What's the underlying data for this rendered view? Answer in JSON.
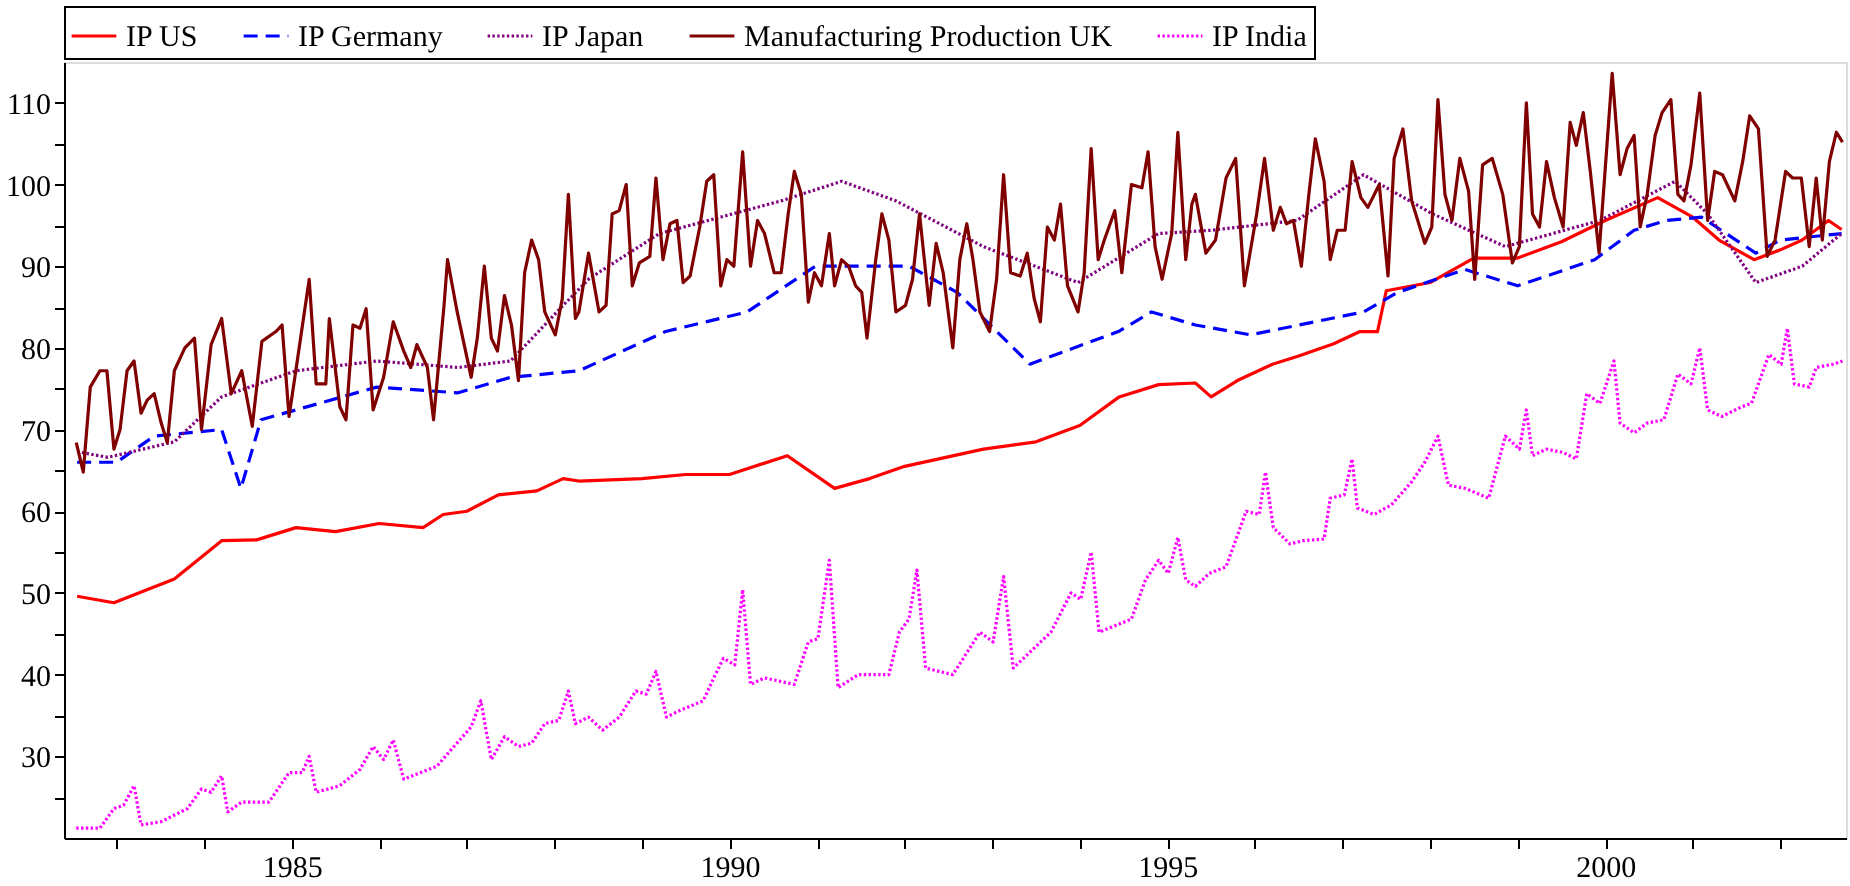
{
  "chart_data": {
    "type": "line",
    "legend": "top",
    "grid": false,
    "xlim": [
      1982.4,
      2002.75
    ],
    "xticks": [
      {
        "value": 1983,
        "label": null
      },
      {
        "value": 1984,
        "label": null
      },
      1985,
      {
        "value": 1986,
        "label": null
      },
      {
        "value": 1987,
        "label": null
      },
      {
        "value": 1988,
        "label": null
      },
      {
        "value": 1989,
        "label": null
      },
      1990,
      {
        "value": 1991,
        "label": null
      },
      {
        "value": 1992,
        "label": null
      },
      {
        "value": 1993,
        "label": null
      },
      {
        "value": 1994,
        "label": null
      },
      1995,
      {
        "value": 1996,
        "label": null
      },
      {
        "value": 1997,
        "label": null
      },
      {
        "value": 1998,
        "label": null
      },
      {
        "value": 1999,
        "label": null
      },
      2000,
      {
        "value": 2001,
        "label": null
      },
      {
        "value": 2002,
        "label": null
      }
    ],
    "ylim": [
      20,
      115
    ],
    "yticks": [
      {
        "value": 25,
        "label": null
      },
      30,
      {
        "value": 35,
        "label": null
      },
      40,
      {
        "value": 45,
        "label": null
      },
      50,
      {
        "value": 55,
        "label": null
      },
      60,
      {
        "value": 65,
        "label": null
      },
      70,
      {
        "value": 75,
        "label": null
      },
      80,
      {
        "value": 85,
        "label": null
      },
      90,
      {
        "value": 95,
        "label": null
      },
      100,
      {
        "value": 105,
        "label": null
      },
      110
    ],
    "series": [
      {
        "name": "IP US",
        "color": "#ff0000",
        "line_style": "solid",
        "x": [
          1982.55,
          1982.97,
          1983.66,
          1984.2,
          1984.6,
          1985.05,
          1985.5,
          1986.0,
          1986.5,
          1986.73,
          1987.0,
          1987.36,
          1987.8,
          1988.1,
          1988.28,
          1989.0,
          1989.5,
          1990.0,
          1990.66,
          1991.2,
          1991.6,
          1992.0,
          1992.9,
          1993.5,
          1994.0,
          1994.45,
          1994.9,
          1995.32,
          1995.5,
          1995.8,
          1996.2,
          1996.5,
          1996.9,
          1997.2,
          1997.4,
          1997.5,
          1998.0,
          1998.5,
          1999.0,
          1999.5,
          2000.0,
          2000.6,
          2001.0,
          2001.3,
          2001.7,
          2002.0,
          2002.25,
          2002.55,
          2002.7
        ],
        "values": [
          49.6,
          48.8,
          51.7,
          56.4,
          56.5,
          58.0,
          57.5,
          58.5,
          58.0,
          59.6,
          60.0,
          62.0,
          62.5,
          64.0,
          63.7,
          64.0,
          64.5,
          64.5,
          66.8,
          62.8,
          64.0,
          65.5,
          67.6,
          68.5,
          70.5,
          74.0,
          75.5,
          75.7,
          74.0,
          76.0,
          78.0,
          79.0,
          80.5,
          82.0,
          82.0,
          87.0,
          88.0,
          91.0,
          91.0,
          93.0,
          95.6,
          98.4,
          96.0,
          93.2,
          90.8,
          92.0,
          93.2,
          95.6,
          94.5
        ]
      },
      {
        "name": "IP Germany",
        "color": "#0000ff",
        "line_style": "dashed",
        "x": [
          1982.55,
          1983.0,
          1983.43,
          1984.2,
          1984.42,
          1984.65,
          1985.97,
          1986.9,
          1987.5,
          1988.28,
          1989.27,
          1990.2,
          1990.98,
          1992.05,
          1992.6,
          1993.43,
          1994.44,
          1994.82,
          1995.32,
          1995.95,
          1997.24,
          1997.63,
          1998.4,
          1999.0,
          1999.88,
          2000.33,
          2000.7,
          2001.1,
          2001.72,
          2002.0,
          2002.7
        ],
        "values": [
          66.0,
          66.0,
          69.2,
          70.0,
          62.8,
          71.2,
          75.2,
          74.5,
          76.4,
          77.2,
          82.0,
          84.4,
          90.0,
          90.0,
          86.8,
          78.0,
          82.0,
          84.4,
          82.8,
          81.6,
          84.4,
          86.8,
          89.6,
          87.6,
          90.8,
          94.4,
          95.6,
          96.0,
          91.6,
          93.2,
          94.0
        ]
      },
      {
        "name": "IP Japan",
        "color": "#800080",
        "line_style": "dotted",
        "x": [
          1982.55,
          1982.9,
          1983.66,
          1984.2,
          1985.05,
          1985.97,
          1986.9,
          1987.5,
          1988.1,
          1988.4,
          1989.2,
          1990.59,
          1991.28,
          1991.9,
          1992.9,
          1993.98,
          1994.9,
          1995.5,
          1996.48,
          1997.24,
          1998.03,
          1998.86,
          1999.94,
          2000.8,
          2001.17,
          2001.72,
          2002.25,
          2002.7
        ],
        "values": [
          67.3,
          66.6,
          68.5,
          74.0,
          77.2,
          78.4,
          77.6,
          78.4,
          85.2,
          88.5,
          94.0,
          98.0,
          100.4,
          98.0,
          92.4,
          88.0,
          94.0,
          94.4,
          95.6,
          101.2,
          96.4,
          92.4,
          95.6,
          100.4,
          96.4,
          88.0,
          90.0,
          94.0
        ]
      },
      {
        "name": "Manufacturing Production UK",
        "color": "#800000",
        "line_style": "solid",
        "x": [
          1982.54,
          1982.62,
          1982.7,
          1982.81,
          1982.89,
          1982.97,
          1983.04,
          1983.12,
          1983.2,
          1983.28,
          1983.35,
          1983.43,
          1983.51,
          1983.58,
          1983.66,
          1983.78,
          1983.89,
          1983.97,
          1984.08,
          1984.2,
          1984.31,
          1984.43,
          1984.55,
          1984.66,
          1984.82,
          1984.89,
          1984.97,
          1985.08,
          1985.2,
          1985.28,
          1985.39,
          1985.43,
          1985.55,
          1985.62,
          1985.7,
          1985.78,
          1985.85,
          1985.93,
          1986.05,
          1986.16,
          1986.28,
          1986.36,
          1986.43,
          1986.55,
          1986.62,
          1986.74,
          1986.78,
          1986.89,
          1987.05,
          1987.12,
          1987.2,
          1987.28,
          1987.35,
          1987.43,
          1987.51,
          1987.59,
          1987.66,
          1987.74,
          1987.82,
          1987.89,
          1988.01,
          1988.09,
          1988.16,
          1988.24,
          1988.28,
          1988.39,
          1988.51,
          1988.59,
          1988.66,
          1988.74,
          1988.82,
          1988.89,
          1988.97,
          1989.09,
          1989.16,
          1989.24,
          1989.32,
          1989.4,
          1989.47,
          1989.55,
          1989.66,
          1989.74,
          1989.82,
          1989.9,
          1989.97,
          1990.05,
          1990.15,
          1990.24,
          1990.32,
          1990.4,
          1990.51,
          1990.59,
          1990.67,
          1990.74,
          1990.82,
          1990.9,
          1990.97,
          1991.05,
          1991.14,
          1991.2,
          1991.28,
          1991.36,
          1991.44,
          1991.51,
          1991.57,
          1991.67,
          1991.74,
          1991.82,
          1991.9,
          1992.01,
          1992.09,
          1992.17,
          1992.28,
          1992.36,
          1992.44,
          1992.55,
          1992.63,
          1992.71,
          1992.78,
          1992.86,
          1992.97,
          1993.05,
          1993.13,
          1993.21,
          1993.32,
          1993.4,
          1993.48,
          1993.55,
          1993.63,
          1993.71,
          1993.78,
          1993.86,
          1993.98,
          1994.05,
          1994.13,
          1994.21,
          1994.28,
          1994.4,
          1994.48,
          1994.59,
          1994.71,
          1994.78,
          1994.86,
          1994.94,
          1995.05,
          1995.12,
          1995.21,
          1995.28,
          1995.32,
          1995.44,
          1995.55,
          1995.67,
          1995.78,
          1995.88,
          1996.02,
          1996.11,
          1996.21,
          1996.29,
          1996.36,
          1996.44,
          1996.53,
          1996.62,
          1996.69,
          1996.79,
          1996.86,
          1996.94,
          1997.03,
          1997.11,
          1997.21,
          1997.29,
          1997.42,
          1997.52,
          1997.59,
          1997.69,
          1997.79,
          1997.94,
          1998.02,
          1998.09,
          1998.17,
          1998.25,
          1998.34,
          1998.44,
          1998.51,
          1998.6,
          1998.71,
          1998.83,
          1998.94,
          1999.02,
          1999.1,
          1999.17,
          1999.25,
          1999.33,
          1999.42,
          1999.52,
          1999.6,
          1999.67,
          1999.75,
          1999.83,
          1999.93,
          2000.08,
          2000.17,
          2000.25,
          2000.33,
          2000.4,
          2000.48,
          2000.57,
          2000.65,
          2000.75,
          2000.83,
          2000.9,
          2000.98,
          2001.08,
          2001.17,
          2001.25,
          2001.34,
          2001.48,
          2001.57,
          2001.65,
          2001.75,
          2001.85,
          2001.94,
          2002.06,
          2002.14,
          2002.24,
          2002.33,
          2002.41,
          2002.48,
          2002.56,
          2002.64,
          2002.71
        ],
        "values": [
          68.4,
          64.8,
          75.2,
          77.2,
          77.2,
          67.6,
          70.0,
          77.2,
          78.4,
          72.0,
          73.6,
          74.4,
          70.8,
          68.4,
          77.2,
          80.0,
          81.2,
          70.0,
          80.4,
          83.6,
          74.4,
          77.2,
          70.4,
          80.8,
          82.0,
          82.8,
          71.6,
          79.6,
          88.4,
          75.6,
          75.6,
          83.6,
          72.8,
          71.2,
          82.8,
          82.4,
          84.8,
          72.4,
          76.4,
          83.2,
          79.6,
          77.6,
          80.4,
          77.6,
          71.2,
          85.2,
          90.8,
          84.4,
          76.4,
          81.2,
          90.0,
          81.2,
          79.6,
          86.4,
          82.8,
          76.0,
          89.2,
          93.2,
          90.8,
          84.4,
          81.6,
          86.0,
          98.8,
          83.6,
          84.4,
          91.6,
          84.4,
          85.2,
          96.4,
          96.8,
          100.0,
          87.6,
          90.4,
          91.2,
          100.8,
          90.8,
          95.2,
          95.6,
          88.0,
          88.8,
          94.8,
          100.4,
          101.2,
          87.6,
          90.8,
          90.0,
          104.0,
          90.0,
          95.6,
          94.0,
          89.2,
          89.2,
          96.4,
          101.6,
          98.8,
          85.6,
          89.2,
          87.6,
          94.0,
          87.6,
          90.8,
          90.0,
          87.6,
          86.8,
          81.2,
          90.8,
          96.4,
          93.2,
          84.4,
          85.2,
          88.4,
          96.4,
          85.2,
          92.8,
          89.2,
          80.0,
          90.8,
          95.2,
          90.8,
          84.4,
          82.0,
          88.4,
          101.2,
          89.2,
          88.8,
          91.6,
          86.0,
          83.2,
          94.8,
          93.2,
          97.6,
          87.6,
          84.4,
          89.2,
          104.4,
          90.8,
          93.2,
          96.8,
          89.2,
          100.0,
          99.6,
          104.0,
          92.4,
          88.4,
          94.0,
          106.4,
          90.8,
          97.6,
          98.8,
          91.6,
          93.2,
          100.8,
          103.2,
          87.6,
          96.4,
          103.2,
          94.4,
          97.2,
          95.2,
          95.6,
          90.0,
          99.2,
          105.6,
          100.4,
          90.8,
          94.4,
          94.4,
          102.8,
          98.4,
          97.2,
          100.0,
          88.8,
          103.2,
          106.8,
          98.0,
          92.8,
          94.8,
          110.4,
          98.8,
          95.6,
          103.2,
          99.2,
          88.4,
          102.4,
          103.2,
          98.8,
          90.4,
          92.4,
          110.0,
          96.4,
          94.8,
          102.8,
          98.4,
          94.8,
          107.6,
          104.8,
          108.8,
          101.6,
          91.6,
          113.6,
          101.2,
          104.4,
          106.0,
          94.8,
          98.8,
          106.0,
          108.8,
          110.4,
          98.8,
          98.0,
          102.4,
          111.2,
          95.6,
          101.6,
          101.2,
          98.0,
          102.8,
          108.4,
          106.8,
          91.2,
          93.2,
          101.6,
          100.8,
          100.8,
          92.4,
          100.8,
          93.2,
          102.8,
          106.4,
          105.2
        ]
      },
      {
        "name": "IP India",
        "color": "#ff00ff",
        "line_style": "dotted",
        "x": [
          1982.54,
          1982.81,
          1982.97,
          1983.08,
          1983.2,
          1983.28,
          1983.51,
          1983.81,
          1983.97,
          1984.08,
          1984.2,
          1984.27,
          1984.43,
          1984.74,
          1984.97,
          1985.12,
          1985.2,
          1985.28,
          1985.55,
          1985.78,
          1985.93,
          1986.05,
          1986.16,
          1986.28,
          1986.66,
          1986.82,
          1987.05,
          1987.16,
          1987.28,
          1987.43,
          1987.59,
          1987.74,
          1987.89,
          1988.05,
          1988.16,
          1988.24,
          1988.39,
          1988.55,
          1988.74,
          1988.93,
          1989.05,
          1989.16,
          1989.28,
          1989.43,
          1989.7,
          1989.82,
          1989.93,
          1990.06,
          1990.15,
          1990.24,
          1990.4,
          1990.74,
          1990.9,
          1991.01,
          1991.14,
          1991.24,
          1991.47,
          1991.82,
          1991.94,
          1992.05,
          1992.14,
          1992.24,
          1992.55,
          1992.67,
          1992.86,
          1993.01,
          1993.13,
          1993.24,
          1993.67,
          1993.9,
          1994.01,
          1994.13,
          1994.22,
          1994.59,
          1994.75,
          1994.9,
          1995.01,
          1995.12,
          1995.21,
          1995.32,
          1995.48,
          1995.67,
          1995.9,
          1996.05,
          1996.12,
          1996.21,
          1996.4,
          1996.55,
          1996.79,
          1996.86,
          1997.02,
          1997.11,
          1997.17,
          1997.36,
          1997.56,
          1997.79,
          1997.94,
          1998.09,
          1998.21,
          1998.4,
          1998.67,
          1998.86,
          1999.02,
          1999.1,
          1999.17,
          1999.33,
          1999.52,
          1999.67,
          1999.79,
          1999.94,
          2000.1,
          2000.17,
          2000.33,
          2000.48,
          2000.67,
          2000.83,
          2000.98,
          2001.08,
          2001.17,
          2001.33,
          2001.56,
          2001.67,
          2001.87,
          2002.01,
          2002.08,
          2002.16,
          2002.33,
          2002.41,
          2002.6,
          2002.71
        ],
        "values": [
          21.2,
          21.2,
          23.6,
          24.0,
          26.4,
          21.6,
          22.0,
          23.6,
          26.0,
          25.6,
          27.6,
          23.2,
          24.4,
          24.4,
          28.0,
          28.0,
          30.0,
          25.6,
          26.4,
          28.4,
          31.2,
          29.6,
          32.0,
          27.2,
          28.8,
          30.8,
          33.6,
          36.8,
          29.6,
          32.4,
          31.2,
          31.6,
          34.0,
          34.4,
          38.0,
          34.0,
          34.8,
          33.2,
          34.8,
          38.0,
          37.6,
          40.4,
          34.8,
          35.6,
          36.8,
          39.6,
          42.0,
          41.2,
          50.4,
          38.8,
          39.6,
          38.8,
          44.0,
          44.4,
          54.0,
          38.4,
          40.0,
          40.0,
          45.2,
          46.8,
          52.8,
          40.8,
          40.0,
          42.0,
          45.2,
          44.0,
          52.0,
          40.8,
          45.2,
          50.0,
          49.2,
          55.0,
          45.2,
          46.8,
          51.6,
          54.0,
          52.4,
          56.8,
          51.6,
          50.8,
          52.4,
          53.2,
          60.0,
          59.6,
          64.8,
          58.0,
          56.0,
          56.4,
          56.6,
          61.6,
          62.0,
          66.4,
          60.4,
          59.6,
          60.8,
          63.6,
          66.0,
          69.2,
          63.2,
          62.8,
          61.6,
          69.2,
          67.6,
          72.4,
          66.8,
          67.6,
          67.2,
          66.4,
          74.4,
          73.2,
          78.4,
          70.8,
          69.6,
          70.8,
          71.2,
          76.8,
          75.6,
          80.0,
          72.4,
          71.6,
          72.8,
          73.2,
          79.2,
          78.0,
          82.4,
          75.6,
          75.2,
          77.6,
          78.0,
          78.4
        ]
      }
    ]
  }
}
